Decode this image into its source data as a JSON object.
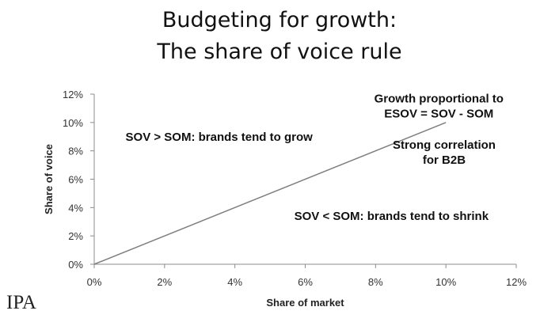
{
  "title": {
    "line1": "Budgeting for growth:",
    "line2": "The share of voice rule"
  },
  "logo_text": "IPA",
  "chart_data": {
    "type": "line",
    "xlabel": "Share of market",
    "ylabel": "Share of voice",
    "xlim": [
      0,
      12
    ],
    "ylim": [
      0,
      12
    ],
    "x_ticks": [
      "0%",
      "2%",
      "4%",
      "6%",
      "8%",
      "10%",
      "12%"
    ],
    "y_ticks": [
      "0%",
      "2%",
      "4%",
      "6%",
      "8%",
      "10%",
      "12%"
    ],
    "series": [
      {
        "x": [
          0,
          10
        ],
        "y": [
          0,
          10
        ]
      }
    ],
    "grid": false,
    "annotations": [
      {
        "lines": [
          "Growth proportional to",
          "ESOV = SOV - SOM"
        ],
        "x": 9.8,
        "y": 11.15
      },
      {
        "lines": [
          "SOV > SOM: brands tend to grow"
        ],
        "x": 3.55,
        "y": 9.0
      },
      {
        "lines": [
          "Strong correlation",
          "for B2B"
        ],
        "x": 9.95,
        "y": 7.9
      },
      {
        "lines": [
          "SOV < SOM: brands tend to shrink"
        ],
        "x": 8.45,
        "y": 3.4
      }
    ],
    "colors": {
      "line": "#7f7f7f",
      "axis": "#8c8c8c"
    }
  }
}
